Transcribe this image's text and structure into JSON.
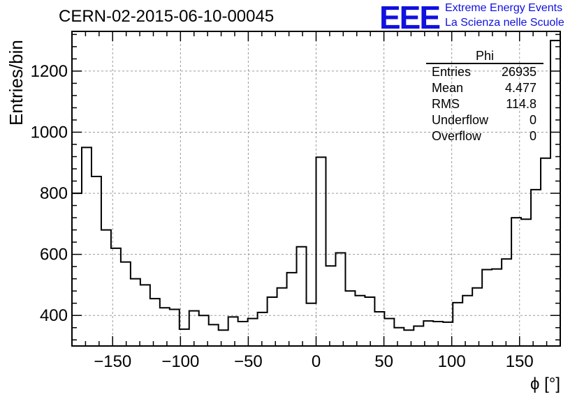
{
  "title": "CERN-02-2015-06-10-00045",
  "logo": {
    "mark": "EEE",
    "line1": "Extreme Energy Events",
    "line2": "La Scienza nelle Scuole",
    "color": "#1010e0"
  },
  "stats": {
    "name": "Phi",
    "rows": [
      {
        "label": "Entries",
        "value": "26935"
      },
      {
        "label": "Mean",
        "value": "4.477"
      },
      {
        "label": "RMS",
        "value": "114.8"
      },
      {
        "label": "Underflow",
        "value": "0"
      },
      {
        "label": "Overflow",
        "value": "0"
      }
    ]
  },
  "chart_data": {
    "type": "histogram",
    "xlabel": "ϕ [°]",
    "ylabel": "Entries/bin",
    "xlim": [
      -180,
      180
    ],
    "ylim": [
      300,
      1330
    ],
    "bin_width": 7.2,
    "x_ticks": [
      -150,
      -100,
      -50,
      0,
      50,
      100,
      150
    ],
    "y_ticks": [
      400,
      600,
      800,
      1000,
      1200
    ],
    "grid": true,
    "values": [
      800,
      950,
      855,
      680,
      620,
      575,
      520,
      500,
      455,
      425,
      420,
      355,
      415,
      400,
      370,
      352,
      395,
      380,
      390,
      410,
      460,
      490,
      540,
      625,
      440,
      918,
      562,
      605,
      480,
      465,
      460,
      412,
      390,
      360,
      352,
      365,
      382,
      380,
      378,
      442,
      465,
      490,
      550,
      552,
      585,
      720,
      715,
      812,
      915,
      1300
    ]
  }
}
